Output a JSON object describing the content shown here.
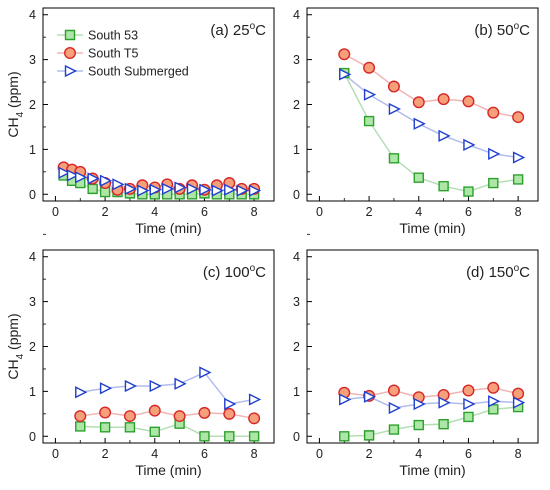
{
  "figure": {
    "ylabel_main": "CH",
    "ylabel_sub": "4",
    "ylabel_unit": " (ppm)",
    "xlabel": "Time (min)",
    "yticks": [
      "0",
      "1",
      "2",
      "3",
      "4"
    ],
    "xticks": [
      "0",
      "2",
      "4",
      "6",
      "8"
    ],
    "degree_symbol": "o",
    "celsius": "C"
  },
  "legend": {
    "entries": [
      {
        "name": "South 53",
        "color": "#2ca02c",
        "fill": "#aee6a8",
        "marker": "square"
      },
      {
        "name": "South T5",
        "color": "#d62728",
        "fill": "#f5a07a",
        "marker": "circle"
      },
      {
        "name": "South Submerged",
        "color": "#1f3fcc",
        "fill": "#ffffff",
        "marker": "triangle-right"
      }
    ]
  },
  "chart_data": [
    {
      "type": "line",
      "panel_label": "(a) 25",
      "xlim": [
        -0.5,
        8.8
      ],
      "ylim": [
        -0.15,
        4.15
      ],
      "series": [
        {
          "name": "South 53",
          "x": [
            0.33,
            0.67,
            1.0,
            1.5,
            2.0,
            2.5,
            3.0,
            3.5,
            4.0,
            4.5,
            5.0,
            5.5,
            6.0,
            6.5,
            7.0,
            7.5,
            8.0
          ],
          "y": [
            0.42,
            0.3,
            0.25,
            0.12,
            0.05,
            0.05,
            0.02,
            0.0,
            0.0,
            0.0,
            0.0,
            0.0,
            0.02,
            0.0,
            0.0,
            0.0,
            0.0
          ]
        },
        {
          "name": "South T5",
          "x": [
            0.33,
            0.67,
            1.0,
            1.5,
            2.0,
            2.5,
            3.0,
            3.5,
            4.0,
            4.5,
            5.0,
            5.5,
            6.0,
            6.5,
            7.0,
            7.5,
            8.0
          ],
          "y": [
            0.6,
            0.55,
            0.5,
            0.35,
            0.25,
            0.1,
            0.12,
            0.2,
            0.15,
            0.22,
            0.12,
            0.2,
            0.1,
            0.2,
            0.25,
            0.12,
            0.12
          ]
        },
        {
          "name": "South Submerged",
          "x": [
            0.33,
            0.67,
            1.0,
            1.5,
            2.0,
            2.5,
            3.0,
            3.5,
            4.0,
            4.5,
            5.0,
            5.5,
            6.0,
            6.5,
            7.0,
            7.5,
            8.0
          ],
          "y": [
            0.48,
            0.42,
            0.38,
            0.35,
            0.3,
            0.22,
            0.12,
            0.08,
            0.1,
            0.12,
            0.15,
            0.12,
            0.1,
            0.08,
            0.1,
            0.08,
            0.08
          ]
        }
      ]
    },
    {
      "type": "line",
      "panel_label": "(b) 50",
      "xlim": [
        -0.5,
        8.8
      ],
      "ylim": [
        -0.15,
        4.15
      ],
      "series": [
        {
          "name": "South 53",
          "x": [
            1,
            2,
            3,
            4,
            5,
            6,
            7,
            8
          ],
          "y": [
            2.7,
            1.63,
            0.8,
            0.37,
            0.18,
            0.06,
            0.25,
            0.33
          ]
        },
        {
          "name": "South T5",
          "x": [
            1,
            2,
            3,
            4,
            5,
            6,
            7,
            8
          ],
          "y": [
            3.12,
            2.82,
            2.4,
            2.05,
            2.12,
            2.07,
            1.82,
            1.72
          ]
        },
        {
          "name": "South Submerged",
          "x": [
            1,
            2,
            3,
            4,
            5,
            6,
            7,
            8
          ],
          "y": [
            2.67,
            2.22,
            1.9,
            1.57,
            1.3,
            1.1,
            0.9,
            0.82
          ]
        }
      ]
    },
    {
      "type": "line",
      "panel_label": "(c) 100",
      "xlim": [
        -0.5,
        8.8
      ],
      "ylim": [
        -0.15,
        4.15
      ],
      "series": [
        {
          "name": "South 53",
          "x": [
            1,
            2,
            3,
            4,
            5,
            6,
            7,
            8
          ],
          "y": [
            0.22,
            0.2,
            0.2,
            0.1,
            0.28,
            0.0,
            0.0,
            0.0
          ]
        },
        {
          "name": "South T5",
          "x": [
            1,
            2,
            3,
            4,
            5,
            6,
            7,
            8
          ],
          "y": [
            0.45,
            0.53,
            0.45,
            0.57,
            0.45,
            0.52,
            0.5,
            0.4
          ]
        },
        {
          "name": "South Submerged",
          "x": [
            1,
            2,
            3,
            4,
            5,
            6,
            7,
            8
          ],
          "y": [
            0.98,
            1.07,
            1.12,
            1.12,
            1.17,
            1.42,
            0.72,
            0.82
          ]
        }
      ]
    },
    {
      "type": "line",
      "panel_label": "(d) 150",
      "xlim": [
        -0.5,
        8.8
      ],
      "ylim": [
        -0.15,
        4.15
      ],
      "series": [
        {
          "name": "South 53",
          "x": [
            1,
            2,
            3,
            4,
            5,
            6,
            7,
            8
          ],
          "y": [
            0.0,
            0.02,
            0.15,
            0.25,
            0.27,
            0.43,
            0.6,
            0.65
          ]
        },
        {
          "name": "South T5",
          "x": [
            1,
            2,
            3,
            4,
            5,
            6,
            7,
            8
          ],
          "y": [
            0.97,
            0.9,
            1.02,
            0.87,
            0.92,
            1.02,
            1.08,
            0.95
          ]
        },
        {
          "name": "South Submerged",
          "x": [
            1,
            2,
            3,
            4,
            5,
            6,
            7,
            8
          ],
          "y": [
            0.82,
            0.88,
            0.63,
            0.72,
            0.75,
            0.72,
            0.78,
            0.75
          ]
        }
      ]
    }
  ]
}
